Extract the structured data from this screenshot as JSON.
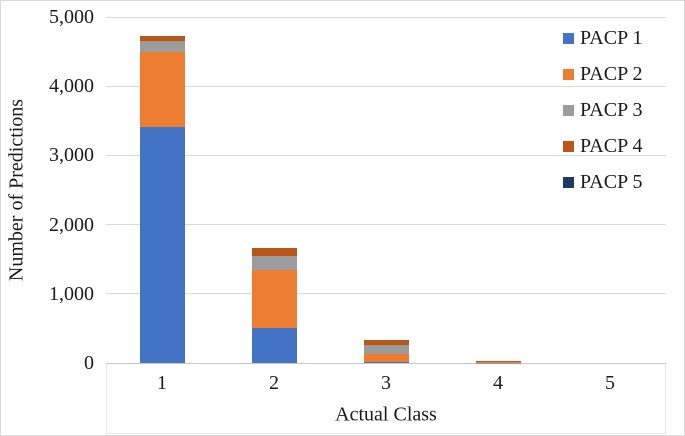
{
  "chart_data": {
    "type": "bar",
    "subtype": "stacked-vertical",
    "title": "",
    "xlabel": "Actual Class",
    "ylabel": "Number of Predictions",
    "categories": [
      "1",
      "2",
      "3",
      "4",
      "5"
    ],
    "series": [
      {
        "name": "PACP 1",
        "color": "#4472C4",
        "values": [
          3410,
          510,
          15,
          2,
          0
        ]
      },
      {
        "name": "PACP 2",
        "color": "#ED7D31",
        "values": [
          1090,
          830,
          115,
          5,
          0
        ]
      },
      {
        "name": "PACP 3",
        "color": "#9C9C9C",
        "values": [
          150,
          210,
          125,
          18,
          0
        ]
      },
      {
        "name": "PACP 4",
        "color": "#BB5716",
        "values": [
          80,
          110,
          80,
          5,
          0
        ]
      },
      {
        "name": "PACP 5",
        "color": "#1F3864",
        "values": [
          0,
          0,
          0,
          0,
          0
        ]
      }
    ],
    "stack_totals": [
      4730,
      1660,
      335,
      30,
      0
    ],
    "ylim": [
      0,
      5000
    ],
    "yticks": {
      "values": [
        0,
        1000,
        2000,
        3000,
        4000,
        5000
      ],
      "labels": [
        "0",
        "1,000",
        "2,000",
        "3,000",
        "4,000",
        "5,000"
      ]
    },
    "grid": true,
    "legend_position": "right-overlay",
    "colors": {
      "gridline": "#d9d9d9",
      "axis_line": "#c8c8c8",
      "text": "#1b1b1b",
      "background": "#ffffff",
      "border": "#d9d9d9"
    }
  }
}
